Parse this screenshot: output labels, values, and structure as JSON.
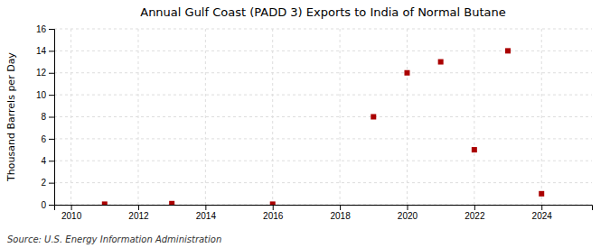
{
  "chart_data": {
    "type": "scatter",
    "title": "Annual Gulf Coast (PADD 3) Exports to India of Normal Butane",
    "ylabel": "Thousand Barrels per Day",
    "source": "Source: U.S. Energy Information Administration",
    "x": [
      2011,
      2013,
      2016,
      2019,
      2020,
      2021,
      2022,
      2023,
      2024
    ],
    "values": [
      0.05,
      0.1,
      0.05,
      8.0,
      12.0,
      13.0,
      5.0,
      14.0,
      1.0
    ],
    "color": "#aa0000",
    "marker": "square",
    "xlim": [
      2009.5,
      2025.5
    ],
    "ylim": [
      0,
      16
    ],
    "xticks": [
      2010,
      2012,
      2014,
      2016,
      2018,
      2020,
      2022,
      2024
    ],
    "yticks": [
      0,
      2,
      4,
      6,
      8,
      10,
      12,
      14,
      16
    ],
    "grid": true
  }
}
